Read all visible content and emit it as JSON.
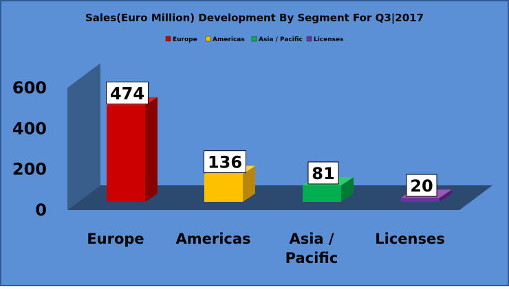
{
  "chart_data": {
    "type": "bar",
    "title": "Sales(Euro Million) Development By Segment For Q3|2017",
    "categories": [
      "Europe",
      "Americas",
      "Asia / Pacific",
      "Licenses"
    ],
    "category_label_lines": [
      [
        "Europe"
      ],
      [
        "Americas"
      ],
      [
        "Asia /",
        "Pacific"
      ],
      [
        "Licenses"
      ]
    ],
    "values": [
      474,
      136,
      81,
      20
    ],
    "data_labels": [
      "474",
      "136",
      "81",
      "20"
    ],
    "yticks": [
      0,
      200,
      400,
      600
    ],
    "ytick_labels": [
      "0",
      "200",
      "400",
      "600"
    ],
    "ylim": [
      0,
      600
    ],
    "grid": false,
    "legend": {
      "placement": "top",
      "entries": [
        {
          "label": "Europe",
          "color": "#cc0000"
        },
        {
          "label": "Americas",
          "color": "#ffc000"
        },
        {
          "label": "Asia / Pacific",
          "color": "#00b050"
        },
        {
          "label": "Licenses",
          "color": "#7030a0"
        }
      ]
    },
    "colors": {
      "background": "#5b8fd6",
      "wall": "#3a5e8c",
      "floor": "#2c4a70",
      "bars": [
        "#cc0000",
        "#ffc000",
        "#00b050",
        "#7030a0"
      ],
      "bar_sides": [
        "#8a0000",
        "#b8860b",
        "#007a35",
        "#4b1f6e"
      ],
      "bar_tops": [
        "#e02020",
        "#ffd24d",
        "#2ecc71",
        "#9b59b6"
      ]
    }
  }
}
